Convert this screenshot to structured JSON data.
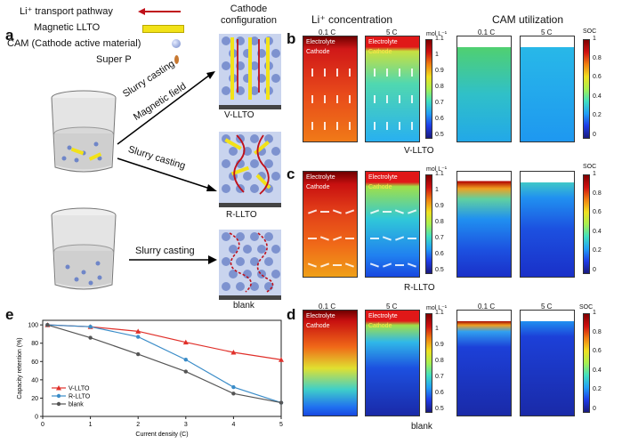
{
  "panels": {
    "a": "a",
    "b": "b",
    "c": "c",
    "d": "d",
    "e": "e"
  },
  "legend_a": {
    "li_path": "Li⁺ transport pathway",
    "llto": "Magnetic LLTO",
    "cam": "CAM  (Cathode active material)",
    "superp": "Super P"
  },
  "process": {
    "slurry1": "Slurry casting",
    "magnetic": "Magnetic field",
    "slurry2": "Slurry casting",
    "slurry3": "Slurry casting"
  },
  "cathode_config": "Cathode\nconfiguration",
  "config_labels": {
    "v": "V-LLTO",
    "r": "R-LLTO",
    "blank": "blank"
  },
  "headers": {
    "conc": "Li⁺ concentration",
    "cam": "CAM utilization"
  },
  "rates": {
    "slow": "0.1 C",
    "fast": "5 C"
  },
  "cell_labels": {
    "electrolyte": "Electrolyte",
    "cathode": "Cathode"
  },
  "conc_unit": "mol L⁻¹",
  "soc_unit": "SOC",
  "conc_ticks": [
    "1.1",
    "1",
    "0.9",
    "0.8",
    "0.7",
    "0.6",
    "0.5"
  ],
  "soc_ticks": [
    "1",
    "0.8",
    "0.6",
    "0.4",
    "0.2",
    "0"
  ],
  "colors": {
    "v": "#e0302a",
    "r": "#3a8cc8",
    "blank": "#555555",
    "llto": "#f2e218",
    "li_arrow": "#c0101a"
  },
  "chart_data": {
    "type": "line",
    "xlabel": "Current density (C)",
    "ylabel": "Capacity retention (%)",
    "x": [
      0.1,
      1,
      2,
      3,
      4,
      5
    ],
    "xticks": [
      "0",
      "1",
      "2",
      "3",
      "4",
      "5"
    ],
    "yticks": [
      "0",
      "20",
      "40",
      "60",
      "80",
      "100"
    ],
    "xlim": [
      0,
      5
    ],
    "ylim": [
      0,
      105
    ],
    "legend_placement": "bottom-left",
    "series": [
      {
        "name": "V-LLTO",
        "values": [
          100,
          98,
          93,
          81,
          70,
          62
        ]
      },
      {
        "name": "R-LLTO",
        "values": [
          100,
          98,
          87,
          62,
          32,
          15
        ]
      },
      {
        "name": "blank",
        "values": [
          100,
          86,
          68,
          49,
          25,
          15
        ]
      }
    ]
  }
}
